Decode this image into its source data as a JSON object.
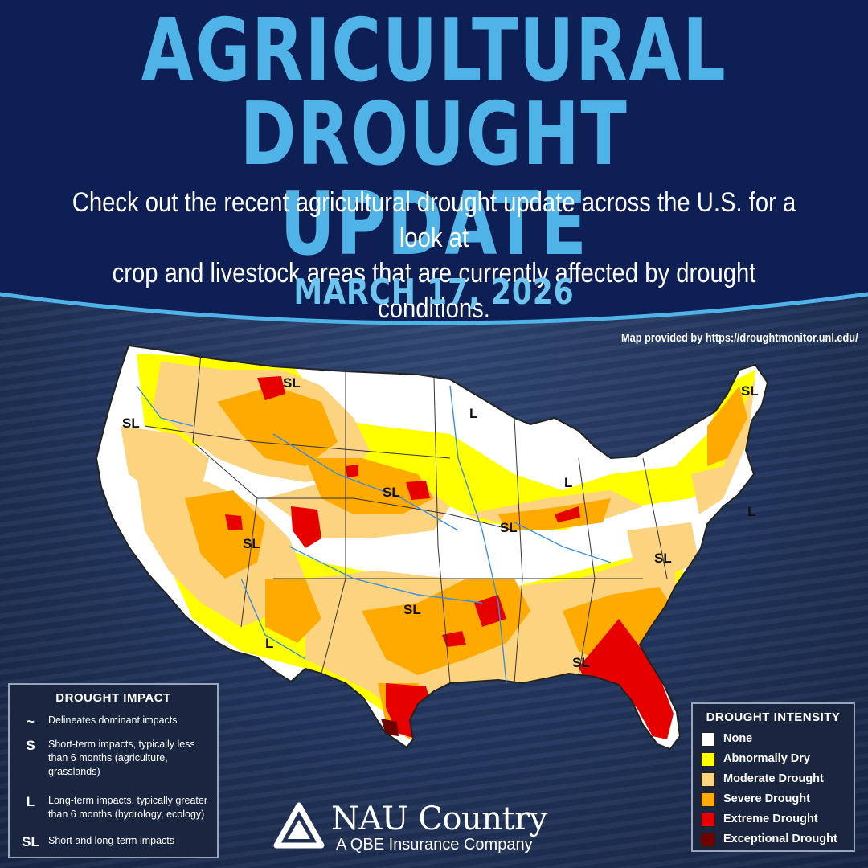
{
  "header": {
    "title_line1": "AGRICULTURAL",
    "title_line2": "DROUGHT UPDATE",
    "subtitle_line1": "Check out the recent agricultural drought update across the U.S. for a look at",
    "subtitle_line2": "crop and livestock areas that are currently affected by drought conditions.",
    "date": "MARCH 17, 2026",
    "credit": "Map provided by https://droughtmonitor.unl.edu/"
  },
  "map": {
    "labels": [
      {
        "text": "SL",
        "region": "Northern Rockies"
      },
      {
        "text": "SL",
        "region": "Pacific Northwest"
      },
      {
        "text": "L",
        "region": "Upper Midwest"
      },
      {
        "text": "SL",
        "region": "New England"
      },
      {
        "text": "L",
        "region": "Michigan"
      },
      {
        "text": "SL",
        "region": "Central Plains"
      },
      {
        "text": "L",
        "region": "Mid-Atlantic"
      },
      {
        "text": "SL",
        "region": "Midwest"
      },
      {
        "text": "SL",
        "region": "Great Basin"
      },
      {
        "text": "SL",
        "region": "Southeast coast"
      },
      {
        "text": "SL",
        "region": "Southern Plains"
      },
      {
        "text": "SL",
        "region": "Southeast"
      },
      {
        "text": "L",
        "region": "Southwest"
      }
    ]
  },
  "legend_impact": {
    "title": "DROUGHT IMPACT",
    "items": [
      {
        "symbol": "~",
        "desc": "Delineates dominant impacts"
      },
      {
        "symbol": "S",
        "desc": "Short-term impacts, typically less than 6 months (agriculture, grasslands)"
      },
      {
        "symbol": "L",
        "desc": "Long-term impacts, typically greater than 6 months (hydrology, ecology)"
      },
      {
        "symbol": "SL",
        "desc": "Short and long-term impacts"
      }
    ]
  },
  "legend_intensity": {
    "title": "DROUGHT INTENSITY",
    "items": [
      {
        "label": "None",
        "color": "#ffffff"
      },
      {
        "label": "Abnormally Dry",
        "color": "#ffff00"
      },
      {
        "label": "Moderate Drought",
        "color": "#fcd37f"
      },
      {
        "label": "Severe Drought",
        "color": "#ffaa00"
      },
      {
        "label": "Extreme Drought",
        "color": "#e60000"
      },
      {
        "label": "Exceptional Drought",
        "color": "#730000"
      }
    ]
  },
  "brand": {
    "name": "NAU Country",
    "tagline": "A QBE Insurance Company"
  }
}
